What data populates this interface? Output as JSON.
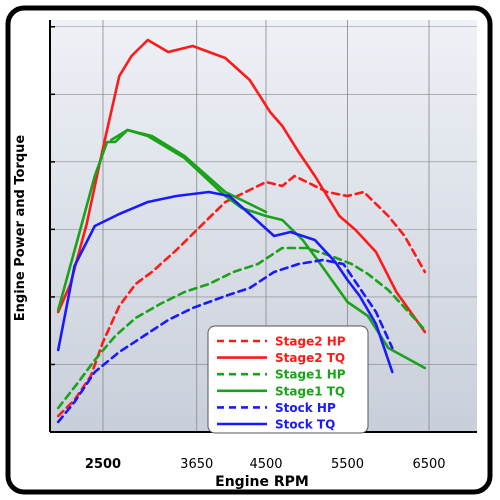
{
  "chart_data": {
    "type": "line",
    "xlabel": "Engine RPM",
    "ylabel": "Engine Power and Torque",
    "xlim": [
      1900,
      6600
    ],
    "xticks": [
      2500,
      3650,
      4500,
      5500,
      6500
    ],
    "xticklabels": [
      "2500",
      "3650",
      "4500",
      "5500",
      "6500"
    ],
    "grid": true,
    "y_tick_marks": 6,
    "legend_position": "bottom-right",
    "series": [
      {
        "name": "Stage2 HP",
        "color": "#ff1a1a",
        "dash": true,
        "points": [
          [
            1950,
            8
          ],
          [
            2150,
            16
          ],
          [
            2350,
            28
          ],
          [
            2500,
            45
          ],
          [
            2700,
            63
          ],
          [
            2900,
            74
          ],
          [
            3100,
            80
          ],
          [
            3400,
            91
          ],
          [
            3700,
            103
          ],
          [
            4000,
            115
          ],
          [
            4300,
            121
          ],
          [
            4500,
            125
          ],
          [
            4700,
            123
          ],
          [
            4850,
            128
          ],
          [
            5000,
            125
          ],
          [
            5250,
            120
          ],
          [
            5500,
            118
          ],
          [
            5700,
            120
          ],
          [
            6000,
            108
          ],
          [
            6200,
            98
          ],
          [
            6450,
            80
          ]
        ]
      },
      {
        "name": "Stage2 TQ",
        "color": "#ff1a1a",
        "dash": false,
        "points": [
          [
            1950,
            60
          ],
          [
            2100,
            74
          ],
          [
            2300,
            104
          ],
          [
            2500,
            142
          ],
          [
            2700,
            178
          ],
          [
            2850,
            188
          ],
          [
            3050,
            196
          ],
          [
            3300,
            190
          ],
          [
            3600,
            193
          ],
          [
            4000,
            187
          ],
          [
            4300,
            176
          ],
          [
            4550,
            160
          ],
          [
            4700,
            153
          ],
          [
            4900,
            140
          ],
          [
            5100,
            128
          ],
          [
            5400,
            108
          ],
          [
            5600,
            101
          ],
          [
            5850,
            90
          ],
          [
            6100,
            70
          ],
          [
            6450,
            50
          ]
        ]
      },
      {
        "name": "Stage1 HP",
        "color": "#1aa31a",
        "dash": true,
        "points": [
          [
            1950,
            12
          ],
          [
            2200,
            25
          ],
          [
            2400,
            36
          ],
          [
            2650,
            48
          ],
          [
            2900,
            57
          ],
          [
            3200,
            64
          ],
          [
            3500,
            70
          ],
          [
            3800,
            74
          ],
          [
            4100,
            80
          ],
          [
            4400,
            84
          ],
          [
            4700,
            92
          ],
          [
            5000,
            92
          ],
          [
            5300,
            88
          ],
          [
            5550,
            84
          ],
          [
            5750,
            79
          ],
          [
            6000,
            71
          ],
          [
            6250,
            60
          ],
          [
            6450,
            51
          ]
        ]
      },
      {
        "name": "Stage1 TQ",
        "color": "#1aa31a",
        "dash": false,
        "points": [
          [
            1950,
            61
          ],
          [
            2200,
            98
          ],
          [
            2400,
            128
          ],
          [
            2550,
            145
          ],
          [
            2650,
            145
          ],
          [
            2800,
            151
          ],
          [
            3050,
            148
          ],
          [
            3500,
            137
          ],
          [
            4000,
            118
          ],
          [
            4200,
            112
          ],
          [
            4500,
            108
          ],
          [
            4700,
            106
          ],
          [
            4950,
            96
          ],
          [
            5150,
            85
          ],
          [
            5500,
            65
          ],
          [
            5750,
            58
          ],
          [
            6000,
            42
          ],
          [
            6450,
            32
          ]
        ]
      },
      {
        "name": "Stage1 TQ overlap",
        "color": "#1aa31a",
        "dash": false,
        "legend": false,
        "points": [
          [
            2600,
            146
          ],
          [
            2800,
            151
          ],
          [
            3100,
            148
          ],
          [
            3500,
            138
          ],
          [
            4000,
            120
          ],
          [
            4500,
            110
          ]
        ]
      },
      {
        "name": "Stock HP",
        "color": "#1a1aff",
        "dash": true,
        "points": [
          [
            1950,
            5
          ],
          [
            2150,
            15
          ],
          [
            2400,
            30
          ],
          [
            2700,
            40
          ],
          [
            3000,
            48
          ],
          [
            3300,
            56
          ],
          [
            3600,
            62
          ],
          [
            4000,
            68
          ],
          [
            4300,
            72
          ],
          [
            4600,
            80
          ],
          [
            4900,
            84
          ],
          [
            5200,
            86
          ],
          [
            5450,
            84
          ],
          [
            5650,
            72
          ],
          [
            5850,
            60
          ],
          [
            6050,
            42
          ]
        ]
      },
      {
        "name": "Stock TQ",
        "color": "#1a1aff",
        "dash": false,
        "points": [
          [
            1950,
            41
          ],
          [
            2150,
            83
          ],
          [
            2400,
            103
          ],
          [
            2700,
            109
          ],
          [
            3050,
            115
          ],
          [
            3400,
            118
          ],
          [
            3800,
            120
          ],
          [
            4050,
            118
          ],
          [
            4300,
            109
          ],
          [
            4600,
            98
          ],
          [
            4800,
            100
          ],
          [
            5100,
            96
          ],
          [
            5350,
            85
          ],
          [
            5500,
            76
          ],
          [
            5650,
            68
          ],
          [
            5850,
            54
          ],
          [
            6050,
            30
          ]
        ]
      }
    ],
    "legend": [
      {
        "label": "Stage2 HP",
        "color": "#ff1a1a",
        "dash": true
      },
      {
        "label": "Stage2 TQ",
        "color": "#ff1a1a",
        "dash": false
      },
      {
        "label": "Stage1 HP",
        "color": "#1aa31a",
        "dash": true
      },
      {
        "label": "Stage1 TQ",
        "color": "#1aa31a",
        "dash": false
      },
      {
        "label": "Stock HP",
        "color": "#1a1aff",
        "dash": true
      },
      {
        "label": "Stock TQ",
        "color": "#1a1aff",
        "dash": false
      }
    ]
  },
  "colors": {
    "frame": "#000000",
    "grid": "#888888",
    "plot_top": "#eef1f6",
    "plot_bottom": "#c9cfda"
  }
}
